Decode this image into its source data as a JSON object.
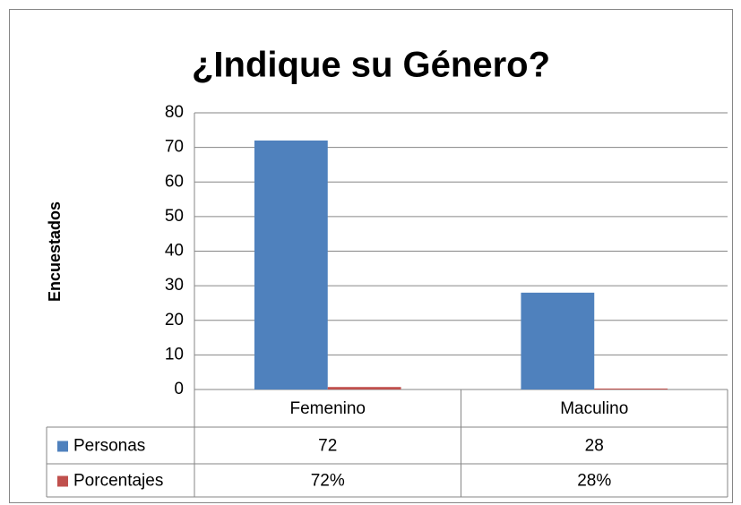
{
  "chart_data": {
    "type": "bar",
    "title": "¿Indique su Género?",
    "y_label": "Encuestados",
    "categories": [
      "Femenino",
      "Maculino"
    ],
    "series": [
      {
        "name": "Personas",
        "color": "#4f81bd",
        "values": [
          72,
          28
        ]
      },
      {
        "name": "Porcentajes",
        "color": "#c0504d",
        "values": [
          0.72,
          0.28
        ],
        "value_labels": [
          "72%",
          "28%"
        ]
      }
    ],
    "ylim": [
      0,
      80
    ],
    "yticks": [
      0,
      10,
      20,
      30,
      40,
      50,
      60,
      70,
      80
    ],
    "grid": true,
    "data_table": true
  }
}
